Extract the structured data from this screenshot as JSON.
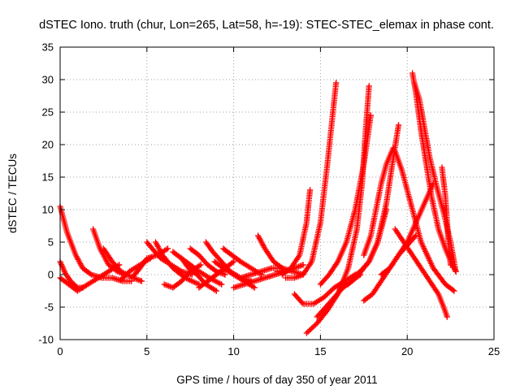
{
  "chart_data": {
    "type": "scatter",
    "title": "dSTEC Iono. truth (chur, Lon=265, Lat=58, h=-19): STEC-STEC_elemax in phase cont.",
    "xlabel": "GPS time / hours of day 350 of year 2011",
    "ylabel": "dSTEC  / TECUs",
    "xlim": [
      0,
      25
    ],
    "ylim": [
      -10,
      35
    ],
    "xticks": [
      "0",
      "5",
      "10",
      "15",
      "20",
      "25"
    ],
    "yticks": [
      "-10",
      "-5",
      "0",
      "5",
      "10",
      "15",
      "20",
      "25",
      "30",
      "35"
    ],
    "grid": true,
    "marker": "plus",
    "color": "#ff0000",
    "series": [
      {
        "x": [
          0.0,
          0.4,
          0.9,
          1.3,
          1.8,
          2.4,
          3.0,
          3.6,
          4.1
        ],
        "y": [
          10.5,
          6.5,
          3.0,
          1.0,
          0.0,
          -0.5,
          -0.5,
          -1.0,
          -1.0
        ]
      },
      {
        "x": [
          0.0,
          0.3,
          0.6,
          1.0,
          1.3
        ],
        "y": [
          2.0,
          0.2,
          -1.0,
          -2.0,
          -2.0
        ]
      },
      {
        "x": [
          0.0,
          0.5,
          1.0,
          1.6,
          2.2,
          2.8,
          3.4
        ],
        "y": [
          -0.5,
          -1.5,
          -2.5,
          -1.5,
          -0.5,
          0.5,
          1.5
        ]
      },
      {
        "x": [
          1.9,
          2.3,
          2.8,
          3.3,
          3.7
        ],
        "y": [
          7.0,
          4.0,
          1.5,
          0.5,
          0.0
        ]
      },
      {
        "x": [
          2.5,
          3.0,
          3.5,
          4.2,
          4.7
        ],
        "y": [
          4.0,
          2.0,
          0.5,
          -0.5,
          -1.0
        ]
      },
      {
        "x": [
          3.5,
          4.0,
          4.6,
          5.2
        ],
        "y": [
          -0.8,
          0.5,
          1.5,
          2.5
        ]
      },
      {
        "x": [
          4.2,
          4.6,
          5.0,
          5.6,
          6.2
        ],
        "y": [
          -0.3,
          1.0,
          2.5,
          3.0,
          4.0
        ]
      },
      {
        "x": [
          5.0,
          5.3,
          5.8,
          6.4,
          7.0,
          7.6
        ],
        "y": [
          5.0,
          4.0,
          2.5,
          1.5,
          0.5,
          0.0
        ]
      },
      {
        "x": [
          5.5,
          5.9,
          6.5,
          7.2,
          8.0
        ],
        "y": [
          5.0,
          3.0,
          1.0,
          -0.5,
          -1.5
        ]
      },
      {
        "x": [
          6.0,
          6.5,
          7.0,
          7.5,
          8.1
        ],
        "y": [
          -1.5,
          -2.0,
          -1.0,
          0.5,
          1.5
        ]
      },
      {
        "x": [
          6.5,
          7.0,
          7.5,
          8.0,
          8.6,
          9.3
        ],
        "y": [
          3.5,
          2.5,
          1.5,
          0.5,
          -0.5,
          -1.5
        ]
      },
      {
        "x": [
          7.0,
          7.4,
          7.9,
          8.4,
          9.0
        ],
        "y": [
          2.5,
          1.0,
          0.0,
          -1.5,
          -2.5
        ]
      },
      {
        "x": [
          7.5,
          8.0,
          8.5,
          9.0,
          9.5
        ],
        "y": [
          4.0,
          3.0,
          1.5,
          0.5,
          0.0
        ]
      },
      {
        "x": [
          8.0,
          8.5,
          9.0,
          9.5,
          10.0
        ],
        "y": [
          -2.0,
          -1.0,
          0.0,
          1.0,
          2.0
        ]
      },
      {
        "x": [
          8.4,
          8.8,
          9.3,
          9.8,
          10.4,
          11.0
        ],
        "y": [
          5.0,
          3.5,
          2.0,
          0.5,
          -0.5,
          -1.0
        ]
      },
      {
        "x": [
          8.9,
          9.4,
          10.0,
          10.6,
          11.2
        ],
        "y": [
          2.0,
          1.0,
          0.0,
          -1.0,
          -2.0
        ]
      },
      {
        "x": [
          9.4,
          9.9,
          10.4,
          11.0,
          11.6
        ],
        "y": [
          4.0,
          3.0,
          2.0,
          1.0,
          0.0
        ]
      },
      {
        "x": [
          10.0,
          10.6,
          11.2,
          11.8,
          12.4,
          13.0
        ],
        "y": [
          -2.0,
          -1.5,
          -1.0,
          -0.5,
          0.0,
          0.5
        ]
      },
      {
        "x": [
          10.4,
          11.0,
          11.6,
          12.2,
          12.8
        ],
        "y": [
          -0.5,
          0.0,
          0.5,
          1.0,
          1.0
        ]
      },
      {
        "x": [
          11.4,
          11.8,
          12.3,
          12.8,
          13.4,
          14.0
        ],
        "y": [
          6.0,
          4.0,
          2.0,
          1.0,
          0.5,
          0.0
        ]
      },
      {
        "x": [
          12.5,
          13.0,
          13.5,
          14.0
        ],
        "y": [
          0.5,
          0.5,
          1.0,
          1.5
        ]
      },
      {
        "x": [
          12.8,
          13.3,
          13.8,
          14.2,
          14.4
        ],
        "y": [
          0.0,
          1.0,
          3.0,
          8.0,
          13.0
        ]
      },
      {
        "x": [
          13.0,
          13.5,
          14.0,
          14.5,
          15.0,
          15.4,
          15.9
        ],
        "y": [
          -0.5,
          -0.5,
          0.0,
          2.0,
          8.0,
          17.0,
          29.5
        ]
      },
      {
        "x": [
          13.5,
          14.0,
          14.6,
          15.2,
          15.8,
          16.4,
          17.0
        ],
        "y": [
          -3.0,
          -4.5,
          -4.5,
          -3.5,
          -2.0,
          -1.0,
          0.0
        ]
      },
      {
        "x": [
          14.2,
          14.8,
          15.4,
          16.0,
          16.6,
          17.1,
          17.4,
          17.6,
          17.8
        ],
        "y": [
          -9.0,
          -7.5,
          -5.5,
          -3.0,
          1.0,
          7.0,
          14.0,
          22.0,
          29.0
        ]
      },
      {
        "x": [
          14.8,
          15.3,
          15.8,
          16.3,
          16.8,
          17.3
        ],
        "y": [
          -6.5,
          -5.0,
          -3.5,
          -2.0,
          -1.0,
          0.0
        ]
      },
      {
        "x": [
          15.0,
          15.5,
          16.0,
          16.5,
          17.0,
          17.5,
          17.9
        ],
        "y": [
          -1.5,
          0.0,
          2.0,
          5.0,
          10.0,
          17.0,
          24.5
        ]
      },
      {
        "x": [
          16.0,
          16.6,
          17.2,
          17.8,
          18.3,
          18.8
        ],
        "y": [
          -2.0,
          -1.5,
          0.0,
          2.0,
          5.0,
          10.0
        ]
      },
      {
        "x": [
          16.8,
          17.3,
          17.8,
          18.3,
          18.8,
          19.2,
          19.5
        ],
        "y": [
          -0.5,
          0.5,
          2.0,
          5.0,
          11.0,
          18.0,
          23.0
        ]
      },
      {
        "x": [
          17.5,
          17.9,
          18.2,
          18.5,
          18.8,
          19.2
        ],
        "y": [
          3.0,
          6.0,
          10.0,
          14.0,
          17.0,
          19.5
        ]
      },
      {
        "x": [
          18.5,
          19.0,
          19.5,
          20.0,
          20.5,
          21.0,
          21.5
        ],
        "y": [
          0.0,
          1.0,
          3.0,
          5.0,
          8.0,
          11.0,
          14.0
        ]
      },
      {
        "x": [
          19.3,
          19.7,
          20.2,
          20.8,
          21.5,
          22.2,
          22.7
        ],
        "y": [
          19.0,
          16.0,
          11.0,
          5.0,
          1.0,
          -1.5,
          -2.5
        ]
      },
      {
        "x": [
          20.3,
          20.5,
          20.8,
          21.1,
          21.4,
          21.8,
          22.2,
          22.6,
          22.8
        ],
        "y": [
          31.0,
          28.0,
          22.0,
          17.0,
          12.0,
          7.0,
          4.0,
          1.5,
          0.5
        ]
      },
      {
        "x": [
          20.4,
          20.7,
          21.0,
          21.3,
          21.7,
          22.1,
          22.5,
          22.8
        ],
        "y": [
          29.5,
          27.0,
          22.5,
          18.0,
          13.5,
          9.5,
          5.0,
          0.5
        ]
      },
      {
        "x": [
          22.0,
          22.2,
          22.3,
          22.4,
          22.5
        ],
        "y": [
          16.5,
          12.0,
          8.0,
          4.0,
          1.5
        ]
      },
      {
        "x": [
          19.3,
          19.8,
          20.3,
          20.8,
          21.3,
          21.8,
          22.1,
          22.3
        ],
        "y": [
          7.0,
          5.0,
          3.0,
          1.0,
          -1.0,
          -3.0,
          -5.0,
          -6.5
        ]
      },
      {
        "x": [
          17.5,
          18.0,
          18.5,
          19.0,
          19.5,
          20.0,
          20.5
        ],
        "y": [
          -4.0,
          -3.0,
          -1.0,
          1.0,
          3.0,
          4.5,
          6.0
        ]
      }
    ]
  }
}
